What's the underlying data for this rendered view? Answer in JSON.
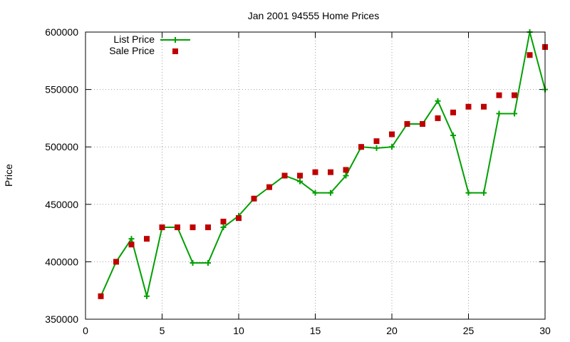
{
  "chart_data": {
    "type": "line",
    "title": "Jan 2001 94555 Home Prices",
    "xlabel": "",
    "ylabel": "Price",
    "xlim": [
      0,
      30
    ],
    "ylim": [
      350000,
      600000
    ],
    "xticks": [
      0,
      5,
      10,
      15,
      20,
      25,
      30
    ],
    "yticks": [
      350000,
      400000,
      450000,
      500000,
      550000,
      600000
    ],
    "grid": true,
    "legend_position": "top-left",
    "series": [
      {
        "name": "List Price",
        "style": "lines-points",
        "marker": "plus",
        "color": "#00a000",
        "x": [
          1,
          2,
          3,
          4,
          5,
          6,
          7,
          8,
          9,
          10,
          11,
          12,
          13,
          14,
          15,
          16,
          17,
          18,
          19,
          20,
          21,
          22,
          23,
          24,
          25,
          26,
          27,
          28,
          29,
          30
        ],
        "y": [
          370000,
          400000,
          420000,
          370000,
          430000,
          430000,
          399000,
          399000,
          430000,
          440000,
          455000,
          465000,
          475000,
          470000,
          460000,
          460000,
          475000,
          500000,
          499000,
          500000,
          520000,
          520000,
          540000,
          510000,
          460000,
          460000,
          529000,
          529000,
          600000,
          550000
        ]
      },
      {
        "name": "Sale Price",
        "style": "points",
        "marker": "square",
        "color": "#c00000",
        "x": [
          1,
          2,
          3,
          4,
          5,
          6,
          7,
          8,
          9,
          10,
          11,
          12,
          13,
          14,
          15,
          16,
          17,
          18,
          19,
          20,
          21,
          22,
          23,
          24,
          25,
          26,
          27,
          28,
          29,
          30
        ],
        "y": [
          370000,
          400000,
          415000,
          420000,
          430000,
          430000,
          430000,
          430000,
          435000,
          438000,
          455000,
          465000,
          475000,
          475000,
          478000,
          478000,
          480000,
          500000,
          505000,
          511000,
          520000,
          520000,
          525000,
          530000,
          535000,
          535000,
          545000,
          545000,
          580000,
          587000
        ]
      }
    ]
  }
}
